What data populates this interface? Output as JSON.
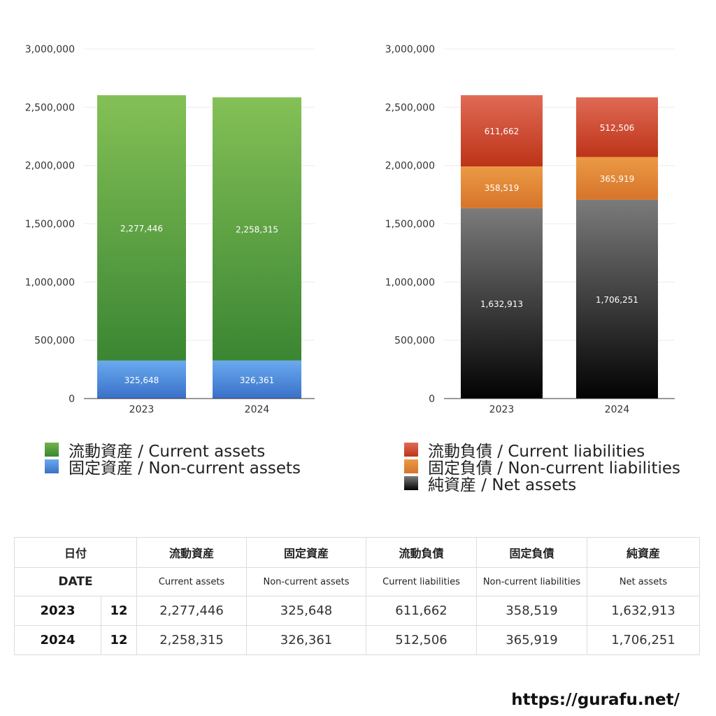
{
  "chart_data": [
    {
      "type": "bar",
      "stacked": true,
      "categories": [
        "2023",
        "2024"
      ],
      "ylim": [
        0,
        3000000
      ],
      "yticks": [
        "0",
        "500,000",
        "1,000,000",
        "1,500,000",
        "2,000,000",
        "2,500,000",
        "3,000,000"
      ],
      "grid": true,
      "legend_position": "bottom",
      "series": [
        {
          "name": "固定資産 / Non-current assets",
          "values": [
            325648,
            326361
          ],
          "labels": [
            "325,648",
            "326,361"
          ],
          "color": "#3d7fd9"
        },
        {
          "name": "流動資産 / Current assets",
          "values": [
            2277446,
            2258315
          ],
          "labels": [
            "2,277,446",
            "2,258,315"
          ],
          "color": "#4e9e3a"
        }
      ]
    },
    {
      "type": "bar",
      "stacked": true,
      "categories": [
        "2023",
        "2024"
      ],
      "ylim": [
        0,
        3000000
      ],
      "yticks": [
        "0",
        "500,000",
        "1,000,000",
        "1,500,000",
        "2,000,000",
        "2,500,000",
        "3,000,000"
      ],
      "grid": true,
      "legend_position": "bottom",
      "series": [
        {
          "name": "純資産 / Net assets",
          "values": [
            1632913,
            1706251
          ],
          "labels": [
            "1,632,913",
            "1,706,251"
          ],
          "color": "#333333"
        },
        {
          "name": "固定負債 / Non-current liabilities",
          "values": [
            358519,
            365919
          ],
          "labels": [
            "358,519",
            "365,919"
          ],
          "color": "#e0822f"
        },
        {
          "name": "流動負債 / Current liabilities",
          "values": [
            611662,
            512506
          ],
          "labels": [
            "611,662",
            "512,506"
          ],
          "color": "#d2452f"
        }
      ]
    }
  ],
  "legend_left": [
    {
      "label": "流動資産 / Current assets",
      "color": "#4e9e3a"
    },
    {
      "label": "固定資産 / Non-current assets",
      "color": "#3d7fd9"
    }
  ],
  "legend_right": [
    {
      "label": "流動負債 / Current liabilities",
      "color": "#d2452f"
    },
    {
      "label": "固定負債 / Non-current liabilities",
      "color": "#e0822f"
    },
    {
      "label": "純資産 / Net assets",
      "color": "#333333"
    }
  ],
  "table": {
    "header_jp": {
      "date": "日付",
      "c1": "流動資産",
      "c2": "固定資産",
      "c3": "流動負債",
      "c4": "固定負債",
      "c5": "純資産"
    },
    "header_en": {
      "date": "DATE",
      "c1": "Current assets",
      "c2": "Non-current assets",
      "c3": "Current liabilities",
      "c4": "Non-current liabilities",
      "c5": "Net assets"
    },
    "rows": [
      {
        "year": "2023",
        "month": "12",
        "c1": "2,277,446",
        "c2": "325,648",
        "c3": "611,662",
        "c4": "358,519",
        "c5": "1,632,913"
      },
      {
        "year": "2024",
        "month": "12",
        "c1": "2,258,315",
        "c2": "326,361",
        "c3": "512,506",
        "c4": "365,919",
        "c5": "1,706,251"
      }
    ]
  },
  "footer": {
    "url": "https://gurafu.net/"
  }
}
